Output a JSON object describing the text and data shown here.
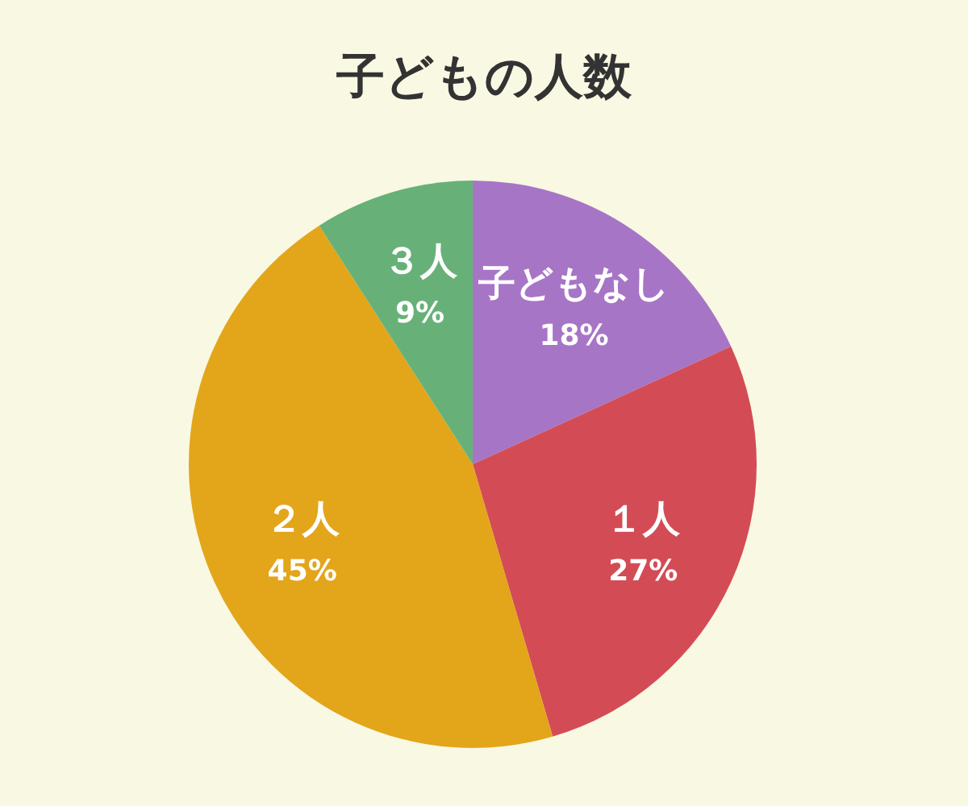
{
  "chart_data": {
    "type": "pie",
    "title": "子どもの人数",
    "categories": [
      "子どもなし",
      "１人",
      "２人",
      "３人"
    ],
    "values": [
      18,
      27,
      45,
      9
    ],
    "value_labels": [
      "18%",
      "27%",
      "45%",
      "9%"
    ],
    "colors": [
      "#a775c6",
      "#d34c55",
      "#e3a51a",
      "#67b178"
    ],
    "legend": false
  }
}
